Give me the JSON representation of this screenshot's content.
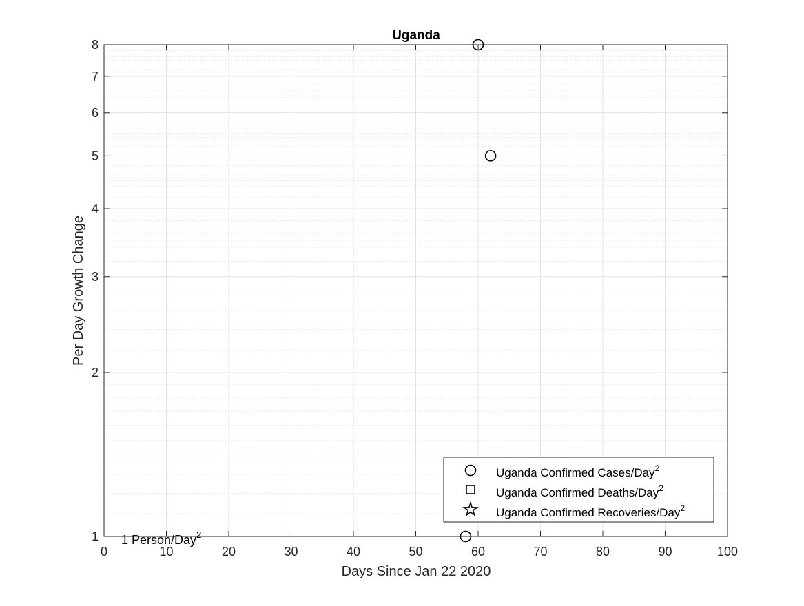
{
  "chart_data": {
    "type": "scatter",
    "title": "Uganda",
    "xlabel": "Days Since Jan 22 2020",
    "ylabel": "Per Day Growth Change",
    "xlim": [
      0,
      100
    ],
    "ylim": [
      1,
      8
    ],
    "yscale": "log",
    "grid": true,
    "xticks": [
      0,
      10,
      20,
      30,
      40,
      50,
      60,
      70,
      80,
      90,
      100
    ],
    "yticks": [
      1,
      2,
      3,
      4,
      5,
      6,
      7,
      8
    ],
    "legend_position": "bottom-right",
    "series": [
      {
        "name": "Uganda Confirmed Cases/Day",
        "marker": "circle",
        "points": [
          {
            "x": 58,
            "y": 1
          },
          {
            "x": 60,
            "y": 8
          },
          {
            "x": 62,
            "y": 5
          }
        ]
      },
      {
        "name": "Uganda Confirmed Deaths/Day",
        "marker": "square",
        "points": []
      },
      {
        "name": "Uganda Confirmed Recoveries/Day",
        "marker": "star",
        "points": []
      }
    ],
    "legend_superscript": "2",
    "annotation": {
      "text": "1 Person/Day",
      "superscript": "2"
    }
  }
}
